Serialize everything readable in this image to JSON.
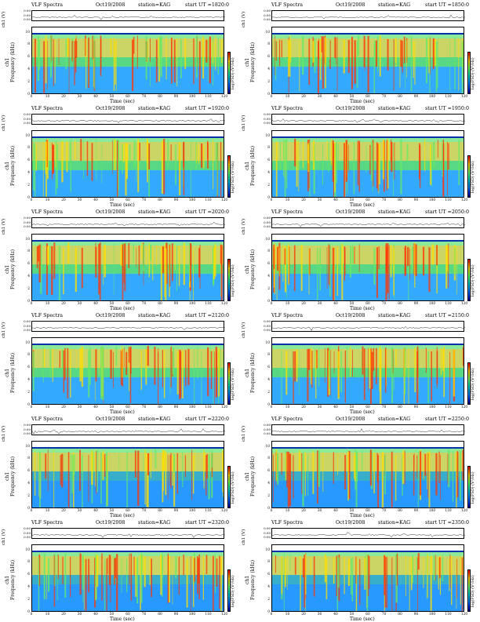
{
  "colors": {
    "spectrum_low": "#1f8fff",
    "spectrum_mid": "#66e866",
    "spectrum_high": "#ff3300",
    "spectrum_peak": "#ffdd00",
    "background": "#ffffff"
  },
  "labels": {
    "title": "VLF Spectra",
    "date": "Oct19/2008",
    "station": "station=KAG",
    "ch_label": "ch1 (V)",
    "ylabel": "ch1\nFrequency (kHz)",
    "xlabel": "Time (sec)",
    "colorbar_label": "log(PSD) (V²/Hz)"
  },
  "chart_data": [
    {
      "type": "heatmap",
      "title": "VLF Spectra",
      "date": "Oct19/2008",
      "station": "station=KAG",
      "start_ut": "start UT =1820:0",
      "xlabel": "Time (sec)",
      "ylabel": "Frequency (kHz)",
      "xlim": [
        0,
        120
      ],
      "ylim": [
        0,
        10
      ],
      "xticks": [
        0,
        10,
        20,
        30,
        40,
        50,
        60,
        70,
        80,
        90,
        100,
        110,
        120
      ],
      "yticks": [
        0,
        2,
        4,
        6,
        8,
        10
      ],
      "ch_yticks": [
        "0.00",
        "0.00",
        "0.00"
      ]
    },
    {
      "type": "heatmap",
      "title": "VLF Spectra",
      "date": "Oct19/2008",
      "station": "station=KAG",
      "start_ut": "start UT =1850:0",
      "xlabel": "Time (sec)",
      "ylabel": "Frequency (kHz)",
      "xlim": [
        0,
        120
      ],
      "ylim": [
        0,
        10
      ],
      "xticks": [
        0,
        10,
        20,
        30,
        40,
        50,
        60,
        70,
        80,
        90,
        100,
        110,
        120
      ],
      "yticks": [
        0,
        2,
        4,
        6,
        8,
        10
      ],
      "ch_yticks": [
        "0.00",
        "0.00",
        "0.00"
      ]
    },
    {
      "type": "heatmap",
      "title": "VLF Spectra",
      "date": "Oct19/2008",
      "station": "station=KAG",
      "start_ut": "start UT =1920:0",
      "xlabel": "Time (sec)",
      "ylabel": "Frequency (kHz)",
      "xlim": [
        0,
        120
      ],
      "ylim": [
        0,
        10
      ],
      "xticks": [
        0,
        10,
        20,
        30,
        40,
        50,
        60,
        70,
        80,
        90,
        100,
        110,
        120
      ],
      "yticks": [
        0,
        2,
        4,
        6,
        8,
        10
      ],
      "ch_yticks": [
        "0.00",
        "0.00",
        "0.00"
      ]
    },
    {
      "type": "heatmap",
      "title": "VLF Spectra",
      "date": "Oct19/2008",
      "station": "station=KAG",
      "start_ut": "start UT =1950:0",
      "xlabel": "Time (sec)",
      "ylabel": "Frequency (kHz)",
      "xlim": [
        0,
        120
      ],
      "ylim": [
        0,
        10
      ],
      "xticks": [
        0,
        10,
        20,
        30,
        40,
        50,
        60,
        70,
        80,
        90,
        100,
        110,
        120
      ],
      "yticks": [
        0,
        2,
        4,
        6,
        8,
        10
      ],
      "ch_yticks": [
        "0.00",
        "0.00",
        "0.00"
      ]
    },
    {
      "type": "heatmap",
      "title": "VLF Spectra",
      "date": "Oct19/2008",
      "station": "station=KAG",
      "start_ut": "start UT =2020:0",
      "xlabel": "Time (sec)",
      "ylabel": "Frequency (kHz)",
      "xlim": [
        0,
        120
      ],
      "ylim": [
        0,
        10
      ],
      "xticks": [
        0,
        10,
        20,
        30,
        40,
        50,
        60,
        70,
        80,
        90,
        100,
        110,
        120
      ],
      "yticks": [
        0,
        2,
        4,
        6,
        8,
        10
      ],
      "ch_yticks": [
        "0.00",
        "0.00",
        "0.00"
      ]
    },
    {
      "type": "heatmap",
      "title": "VLF Spectra",
      "date": "Oct19/2008",
      "station": "station=KAG",
      "start_ut": "start UT =2050:0",
      "xlabel": "Time (sec)",
      "ylabel": "Frequency (kHz)",
      "xlim": [
        0,
        120
      ],
      "ylim": [
        0,
        10
      ],
      "xticks": [
        0,
        10,
        20,
        30,
        40,
        50,
        60,
        70,
        80,
        90,
        100,
        110,
        120
      ],
      "yticks": [
        0,
        2,
        4,
        6,
        8,
        10
      ],
      "ch_yticks": [
        "0.00",
        "0.00",
        "0.00"
      ]
    },
    {
      "type": "heatmap",
      "title": "VLF Spectra",
      "date": "Oct19/2008",
      "station": "station=KAG",
      "start_ut": "start UT =2120:0",
      "xlabel": "Time (sec)",
      "ylabel": "Frequency (kHz)",
      "xlim": [
        0,
        120
      ],
      "ylim": [
        0,
        10
      ],
      "xticks": [
        0,
        10,
        20,
        30,
        40,
        50,
        60,
        70,
        80,
        90,
        100,
        110,
        120
      ],
      "yticks": [
        0,
        2,
        4,
        6,
        8,
        10
      ],
      "ch_yticks": [
        "0.00",
        "0.00",
        "0.00"
      ]
    },
    {
      "type": "heatmap",
      "title": "VLF Spectra",
      "date": "Oct19/2008",
      "station": "station=KAG",
      "start_ut": "start UT =2150:0",
      "xlabel": "Time (sec)",
      "ylabel": "Frequency (kHz)",
      "xlim": [
        0,
        120
      ],
      "ylim": [
        0,
        10
      ],
      "xticks": [
        0,
        10,
        20,
        30,
        40,
        50,
        60,
        70,
        80,
        90,
        100,
        110,
        120
      ],
      "yticks": [
        0,
        2,
        4,
        6,
        8,
        10
      ],
      "ch_yticks": [
        "0.00",
        "0.00",
        "0.00"
      ]
    },
    {
      "type": "heatmap",
      "title": "VLF Spectra",
      "date": "Oct19/2008",
      "station": "station=KAG",
      "start_ut": "start UT =2220:0",
      "xlabel": "Time (sec)",
      "ylabel": "Frequency (kHz)",
      "xlim": [
        0,
        120
      ],
      "ylim": [
        0,
        10
      ],
      "xticks": [
        0,
        10,
        20,
        30,
        40,
        50,
        60,
        70,
        80,
        90,
        100,
        110,
        120
      ],
      "yticks": [
        0,
        2,
        4,
        6,
        8,
        10
      ],
      "ch_yticks": [
        "0.00",
        "0.00",
        "0.00"
      ]
    },
    {
      "type": "heatmap",
      "title": "VLF Spectra",
      "date": "Oct19/2008",
      "station": "station=KAG",
      "start_ut": "start UT =2250:0",
      "xlabel": "Time (sec)",
      "ylabel": "Frequency (kHz)",
      "xlim": [
        0,
        120
      ],
      "ylim": [
        0,
        10
      ],
      "xticks": [
        0,
        10,
        20,
        30,
        40,
        50,
        60,
        70,
        80,
        90,
        100,
        110,
        120
      ],
      "yticks": [
        0,
        2,
        4,
        6,
        8,
        10
      ],
      "ch_yticks": [
        "0.00",
        "0.00",
        "0.00"
      ]
    },
    {
      "type": "heatmap",
      "title": "VLF Spectra",
      "date": "Oct19/2008",
      "station": "station=KAG",
      "start_ut": "start UT =2320:0",
      "xlabel": "Time (sec)",
      "ylabel": "Frequency (kHz)",
      "xlim": [
        0,
        120
      ],
      "ylim": [
        0,
        10
      ],
      "xticks": [
        0,
        10,
        20,
        30,
        40,
        50,
        60,
        70,
        80,
        90,
        100,
        110,
        120
      ],
      "yticks": [
        0,
        2,
        4,
        6,
        8,
        10
      ],
      "ch_yticks": [
        "0.00",
        "0.00",
        "0.00"
      ]
    },
    {
      "type": "heatmap",
      "title": "VLF Spectra",
      "date": "Oct19/2008",
      "station": "station=KAG",
      "start_ut": "start UT =2350:0",
      "xlabel": "Time (sec)",
      "ylabel": "Frequency (kHz)",
      "xlim": [
        0,
        120
      ],
      "ylim": [
        0,
        10
      ],
      "xticks": [
        0,
        10,
        20,
        30,
        40,
        50,
        60,
        70,
        80,
        90,
        100,
        110,
        120
      ],
      "yticks": [
        0,
        2,
        4,
        6,
        8,
        10
      ],
      "ch_yticks": [
        "0.00",
        "0.00",
        "0.00"
      ]
    }
  ]
}
